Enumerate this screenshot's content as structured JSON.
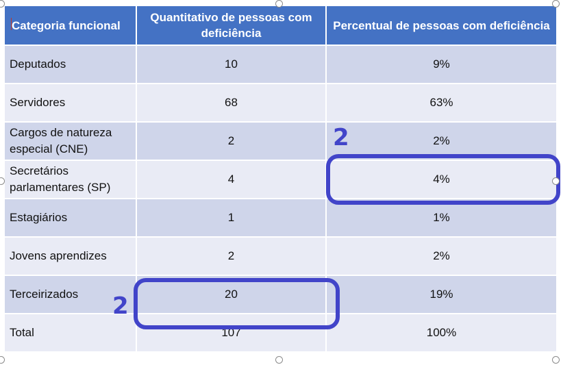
{
  "table": {
    "headers": [
      "Categoria funcional",
      "Quantitativo de pessoas com deficiência",
      "Percentual de pessoas com deficiência"
    ],
    "rows": [
      [
        "Deputados",
        "10",
        "9%"
      ],
      [
        "Servidores",
        "68",
        "63%"
      ],
      [
        "Cargos de natureza especial (CNE)",
        "2",
        "2%"
      ],
      [
        "Secretários parlamentares (SP)",
        "4",
        "4%"
      ],
      [
        "Estagiários",
        "1",
        "1%"
      ],
      [
        "Jovens aprendizes",
        "2",
        "2%"
      ],
      [
        "Terceirizados",
        "20",
        "19%"
      ],
      [
        "Total",
        "107",
        "100%"
      ]
    ]
  },
  "annotations": {
    "label_top": "2",
    "label_bottom": "2"
  },
  "colors": {
    "header_bg": "#4472c4",
    "row_dark": "#cfd5ea",
    "row_light": "#e9ebf5",
    "annotation": "#4144c9"
  }
}
